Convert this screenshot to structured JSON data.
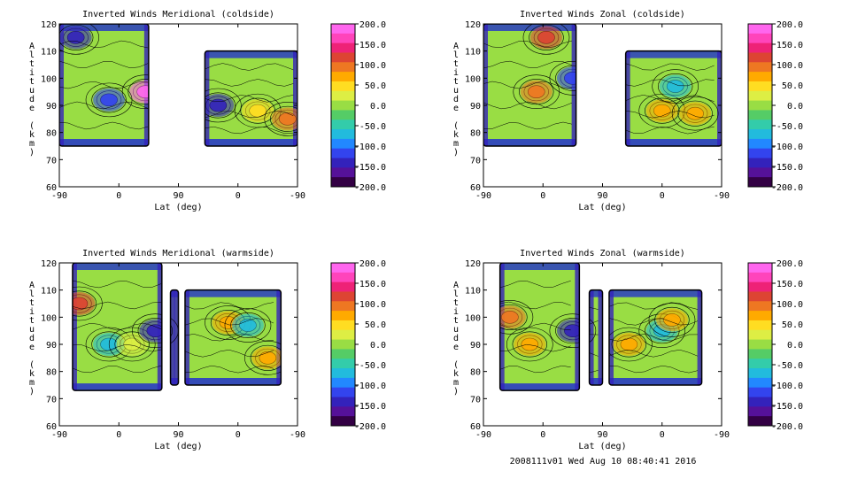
{
  "footer": "2008111v01 Wed Aug 10 08:40:41 2016",
  "colorbar": {
    "labels": [
      "200.0",
      "150.0",
      "100.0",
      "50.0",
      "0.0",
      "-50.0",
      "-100.0",
      "-150.0",
      "-200.0"
    ],
    "colors": [
      "#ff66ee",
      "#ff44bb",
      "#ee2277",
      "#dd4433",
      "#ee7722",
      "#ffaa00",
      "#ffdd22",
      "#ddee44",
      "#99dd44",
      "#55cc66",
      "#33ccaa",
      "#22bbdd",
      "#2288ff",
      "#3344ee",
      "#3322bb",
      "#551199",
      "#330044"
    ]
  },
  "chart_data": [
    {
      "type": "heatmap",
      "title": "Inverted Winds Meridional (coldside)",
      "xlabel": "Lat (deg)",
      "ylabel": "Altitude (km)",
      "x_ticks": [
        "-90",
        "0",
        "90",
        "0",
        "-90"
      ],
      "y_ticks": [
        "60",
        "70",
        "80",
        "90",
        "100",
        "110",
        "120"
      ],
      "ylim": [
        60,
        120
      ],
      "clim": [
        -200,
        200
      ],
      "blocks": [
        {
          "lat_range": [
            -90,
            45
          ],
          "alt_range": [
            75,
            120
          ]
        },
        {
          "lat_range": [
            130,
            270
          ],
          "alt_range": [
            75,
            110
          ]
        }
      ],
      "features": [
        {
          "lat": 40,
          "alt": 95,
          "value": 180
        },
        {
          "lat": -15,
          "alt": 92,
          "value": -120
        },
        {
          "lat": -65,
          "alt": 115,
          "value": -140
        },
        {
          "lat": 210,
          "alt": 88,
          "value": 50
        },
        {
          "lat": 255,
          "alt": 85,
          "value": 90
        },
        {
          "lat": 150,
          "alt": 90,
          "value": -150
        }
      ]
    },
    {
      "type": "heatmap",
      "title": "Inverted Winds Zonal (coldside)",
      "xlabel": "Lat (deg)",
      "ylabel": "Altitude (km)",
      "x_ticks": [
        "-90",
        "0",
        "90",
        "0",
        "-90"
      ],
      "y_ticks": [
        "60",
        "70",
        "80",
        "90",
        "100",
        "110",
        "120"
      ],
      "ylim": [
        60,
        120
      ],
      "clim": [
        -200,
        200
      ],
      "blocks": [
        {
          "lat_range": [
            -90,
            50
          ],
          "alt_range": [
            75,
            120
          ]
        },
        {
          "lat_range": [
            125,
            270
          ],
          "alt_range": [
            75,
            110
          ]
        }
      ],
      "features": [
        {
          "lat": 5,
          "alt": 115,
          "value": 110
        },
        {
          "lat": -10,
          "alt": 95,
          "value": 90
        },
        {
          "lat": 45,
          "alt": 100,
          "value": -120
        },
        {
          "lat": 180,
          "alt": 88,
          "value": 70
        },
        {
          "lat": 200,
          "alt": 97,
          "value": -80
        },
        {
          "lat": 230,
          "alt": 87,
          "value": 60
        }
      ]
    },
    {
      "type": "heatmap",
      "title": "Inverted Winds Meridional (warmside)",
      "xlabel": "Lat (deg)",
      "ylabel": "Altitude (km)",
      "x_ticks": [
        "-90",
        "0",
        "90",
        "0",
        "-90"
      ],
      "y_ticks": [
        "60",
        "70",
        "80",
        "90",
        "100",
        "110",
        "120"
      ],
      "ylim": [
        60,
        120
      ],
      "clim": [
        -200,
        200
      ],
      "blocks": [
        {
          "lat_range": [
            -70,
            65
          ],
          "alt_range": [
            73,
            120
          ]
        },
        {
          "lat_range": [
            78,
            90
          ],
          "alt_range": [
            75,
            110
          ]
        },
        {
          "lat_range": [
            100,
            245
          ],
          "alt_range": [
            75,
            110
          ]
        }
      ],
      "features": [
        {
          "lat": -60,
          "alt": 105,
          "value": 120
        },
        {
          "lat": -15,
          "alt": 90,
          "value": -60
        },
        {
          "lat": 20,
          "alt": 90,
          "value": 30
        },
        {
          "lat": 55,
          "alt": 95,
          "value": -140
        },
        {
          "lat": 165,
          "alt": 98,
          "value": 80
        },
        {
          "lat": 195,
          "alt": 97,
          "value": -60
        },
        {
          "lat": 225,
          "alt": 85,
          "value": 60
        }
      ]
    },
    {
      "type": "heatmap",
      "title": "Inverted Winds Zonal (warmside)",
      "xlabel": "Lat (deg)",
      "ylabel": "Altitude (km)",
      "x_ticks": [
        "-90",
        "0",
        "90",
        "0",
        "-90"
      ],
      "y_ticks": [
        "60",
        "70",
        "80",
        "90",
        "100",
        "110",
        "120"
      ],
      "ylim": [
        60,
        120
      ],
      "clim": [
        -200,
        200
      ],
      "blocks": [
        {
          "lat_range": [
            -65,
            55
          ],
          "alt_range": [
            73,
            120
          ]
        },
        {
          "lat_range": [
            70,
            90
          ],
          "alt_range": [
            75,
            110
          ]
        },
        {
          "lat_range": [
            100,
            240
          ],
          "alt_range": [
            75,
            110
          ]
        }
      ],
      "features": [
        {
          "lat": -50,
          "alt": 100,
          "value": 100
        },
        {
          "lat": -20,
          "alt": 90,
          "value": 60
        },
        {
          "lat": 45,
          "alt": 95,
          "value": -150
        },
        {
          "lat": 180,
          "alt": 95,
          "value": -80
        },
        {
          "lat": 195,
          "alt": 99,
          "value": 70
        },
        {
          "lat": 130,
          "alt": 90,
          "value": 60
        }
      ]
    }
  ]
}
